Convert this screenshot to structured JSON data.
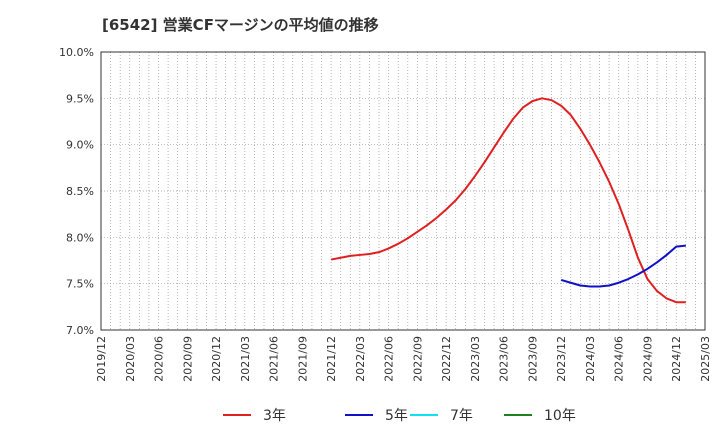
{
  "chart_data": {
    "type": "line",
    "title": "[6542]  営業CFマージンの平均値の推移",
    "xlabel": "",
    "ylabel": "",
    "ylim": [
      7.0,
      10.0
    ],
    "yticks": [
      "10.0%",
      "9.5%",
      "9.0%",
      "8.5%",
      "8.0%",
      "7.5%",
      "7.0%"
    ],
    "yticks_values": [
      10.0,
      9.5,
      9.0,
      8.5,
      8.0,
      7.5,
      7.0
    ],
    "x_categories": [
      "2019/12",
      "2020/03",
      "2020/06",
      "2020/09",
      "2020/12",
      "2021/03",
      "2021/06",
      "2021/09",
      "2021/12",
      "2022/03",
      "2022/06",
      "2022/09",
      "2022/12",
      "2023/03",
      "2023/06",
      "2023/09",
      "2023/12",
      "2024/03",
      "2024/06",
      "2024/09",
      "2024/12",
      "2025/03"
    ],
    "grid": true,
    "legend_position": "bottom",
    "series": [
      {
        "name": "3年",
        "color": "#e02020",
        "points": [
          [
            "2021/12",
            7.76
          ],
          [
            "2022/01",
            7.78
          ],
          [
            "2022/02",
            7.8
          ],
          [
            "2022/03",
            7.81
          ],
          [
            "2022/04",
            7.82
          ],
          [
            "2022/05",
            7.84
          ],
          [
            "2022/06",
            7.88
          ],
          [
            "2022/07",
            7.93
          ],
          [
            "2022/08",
            7.99
          ],
          [
            "2022/09",
            8.06
          ],
          [
            "2022/10",
            8.13
          ],
          [
            "2022/11",
            8.21
          ],
          [
            "2022/12",
            8.3
          ],
          [
            "2023/01",
            8.4
          ],
          [
            "2023/02",
            8.52
          ],
          [
            "2023/03",
            8.66
          ],
          [
            "2023/04",
            8.81
          ],
          [
            "2023/05",
            8.97
          ],
          [
            "2023/06",
            9.13
          ],
          [
            "2023/07",
            9.28
          ],
          [
            "2023/08",
            9.4
          ],
          [
            "2023/09",
            9.47
          ],
          [
            "2023/10",
            9.5
          ],
          [
            "2023/11",
            9.48
          ],
          [
            "2023/12",
            9.42
          ],
          [
            "2024/01",
            9.32
          ],
          [
            "2024/02",
            9.17
          ],
          [
            "2024/03",
            9.0
          ],
          [
            "2024/04",
            8.81
          ],
          [
            "2024/05",
            8.6
          ],
          [
            "2024/06",
            8.36
          ],
          [
            "2024/07",
            8.08
          ],
          [
            "2024/08",
            7.78
          ],
          [
            "2024/09",
            7.55
          ],
          [
            "2024/10",
            7.42
          ],
          [
            "2024/11",
            7.34
          ],
          [
            "2024/12",
            7.3
          ],
          [
            "2025/01",
            7.3
          ]
        ]
      },
      {
        "name": "5年",
        "color": "#1010c8",
        "points": [
          [
            "2023/12",
            7.54
          ],
          [
            "2024/01",
            7.51
          ],
          [
            "2024/02",
            7.48
          ],
          [
            "2024/03",
            7.47
          ],
          [
            "2024/04",
            7.47
          ],
          [
            "2024/05",
            7.48
          ],
          [
            "2024/06",
            7.51
          ],
          [
            "2024/07",
            7.55
          ],
          [
            "2024/08",
            7.6
          ],
          [
            "2024/09",
            7.66
          ],
          [
            "2024/10",
            7.73
          ],
          [
            "2024/11",
            7.81
          ],
          [
            "2024/12",
            7.9
          ],
          [
            "2025/01",
            7.91
          ]
        ]
      },
      {
        "name": "7年",
        "color": "#10e0f0",
        "points": []
      },
      {
        "name": "10年",
        "color": "#208020",
        "points": []
      }
    ]
  }
}
